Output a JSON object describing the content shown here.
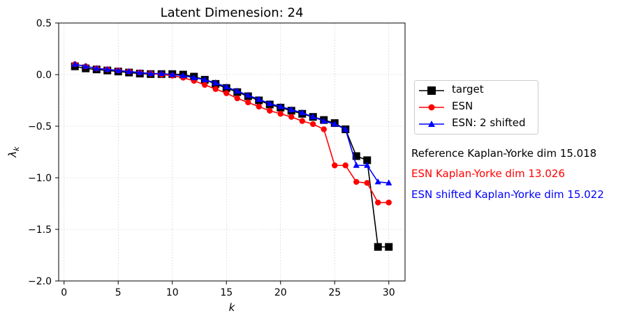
{
  "chart_data": {
    "type": "line",
    "title": "Latent Dimenesion: 24",
    "xlabel": "k",
    "ylabel": "λ",
    "ylabel_subscript": "k",
    "xlim": [
      -0.5,
      31.5
    ],
    "ylim": [
      -2.0,
      0.5
    ],
    "xticks": [
      0,
      5,
      10,
      15,
      20,
      25,
      30
    ],
    "yticks": [
      0.5,
      0.0,
      -0.5,
      -1.0,
      -1.5,
      -2.0
    ],
    "ytick_labels": [
      "0.5",
      "0.0",
      "−0.5",
      "−1.0",
      "−1.5",
      "−2.0"
    ],
    "grid": true,
    "legend_position": "outside-right",
    "series": [
      {
        "name": "target",
        "color": "#000000",
        "marker": "square",
        "x": [
          1,
          2,
          3,
          4,
          5,
          6,
          7,
          8,
          9,
          10,
          11,
          12,
          13,
          14,
          15,
          16,
          17,
          18,
          19,
          20,
          21,
          22,
          23,
          24,
          25,
          26,
          27,
          28,
          29,
          30
        ],
        "y": [
          0.08,
          0.06,
          0.05,
          0.04,
          0.03,
          0.02,
          0.01,
          0.005,
          0.005,
          0.005,
          0.0,
          -0.02,
          -0.05,
          -0.09,
          -0.13,
          -0.17,
          -0.21,
          -0.25,
          -0.29,
          -0.32,
          -0.35,
          -0.38,
          -0.41,
          -0.44,
          -0.47,
          -0.53,
          -0.79,
          -0.83,
          -1.67,
          -1.67
        ]
      },
      {
        "name": "ESN",
        "color": "#ff0000",
        "marker": "circle",
        "x": [
          1,
          2,
          3,
          4,
          5,
          6,
          7,
          8,
          9,
          10,
          11,
          12,
          13,
          14,
          15,
          16,
          17,
          18,
          19,
          20,
          21,
          22,
          23,
          24,
          25,
          26,
          27,
          28,
          29,
          30
        ],
        "y": [
          0.1,
          0.08,
          0.06,
          0.05,
          0.04,
          0.03,
          0.02,
          0.01,
          0.0,
          -0.01,
          -0.03,
          -0.06,
          -0.1,
          -0.14,
          -0.18,
          -0.23,
          -0.27,
          -0.31,
          -0.35,
          -0.38,
          -0.41,
          -0.45,
          -0.48,
          -0.53,
          -0.88,
          -0.88,
          -1.04,
          -1.05,
          -1.24,
          -1.24
        ]
      },
      {
        "name": "ESN: 2 shifted",
        "color": "#0000ff",
        "marker": "triangle",
        "x": [
          1,
          2,
          3,
          4,
          5,
          6,
          7,
          8,
          9,
          10,
          11,
          12,
          13,
          14,
          15,
          16,
          17,
          18,
          19,
          20,
          21,
          22,
          23,
          24,
          25,
          26,
          27,
          28,
          29,
          30
        ],
        "y": [
          0.1,
          0.08,
          0.06,
          0.05,
          0.04,
          0.03,
          0.02,
          0.01,
          0.01,
          0.0,
          -0.01,
          -0.03,
          -0.05,
          -0.08,
          -0.12,
          -0.16,
          -0.2,
          -0.24,
          -0.28,
          -0.31,
          -0.34,
          -0.37,
          -0.41,
          -0.45,
          -0.48,
          -0.53,
          -0.88,
          -0.88,
          -1.04,
          -1.05
        ]
      }
    ],
    "annotations": [
      {
        "text": "Reference Kaplan-Yorke dim 15.018",
        "color": "#000000"
      },
      {
        "text": "ESN Kaplan-Yorke dim 13.026",
        "color": "#ff0000"
      },
      {
        "text": "ESN shifted Kaplan-Yorke dim 15.022",
        "color": "#0000ff"
      }
    ]
  }
}
